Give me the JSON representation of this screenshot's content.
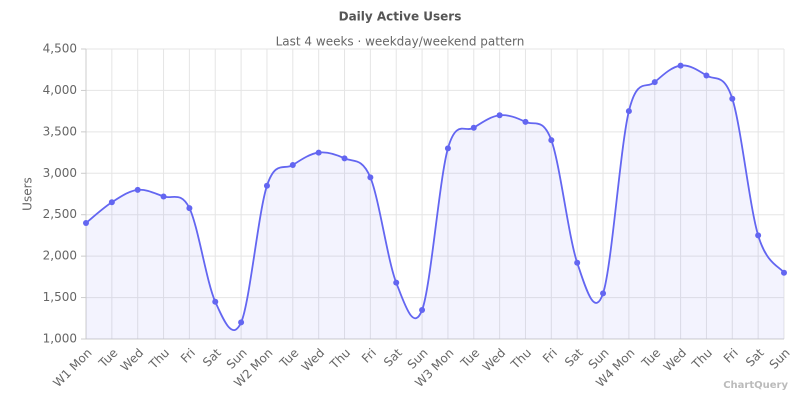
{
  "chart_data": {
    "type": "line",
    "title": "Daily Active Users",
    "subtitle": "Last 4 weeks · weekday/weekend pattern",
    "y_label": "Users",
    "watermark": "ChartQuery",
    "categories": [
      "W1 Mon",
      "Tue",
      "Wed",
      "Thu",
      "Fri",
      "Sat",
      "Sun",
      "W2 Mon",
      "Tue",
      "Wed",
      "Thu",
      "Fri",
      "Sat",
      "Sun",
      "W3 Mon",
      "Tue",
      "Wed",
      "Thu",
      "Fri",
      "Sat",
      "Sun",
      "W4 Mon",
      "Tue",
      "Wed",
      "Thu",
      "Fri",
      "Sat",
      "Sun"
    ],
    "values": [
      2400,
      2650,
      2800,
      2720,
      2580,
      1450,
      1200,
      2850,
      3100,
      3250,
      3180,
      2950,
      1680,
      1350,
      3300,
      3550,
      3700,
      3620,
      3400,
      1920,
      1550,
      3750,
      4100,
      4300,
      4180,
      3900,
      2250,
      1800
    ],
    "color": "#6366f1",
    "area_color": "rgba(99,102,241,0.08)",
    "ylim": [
      1000,
      4500
    ],
    "yticks": [
      {
        "value": 1000,
        "label": "1,000"
      },
      {
        "value": 1500,
        "label": "1,500"
      },
      {
        "value": 2000,
        "label": "2,000"
      },
      {
        "value": 2500,
        "label": "2,500"
      },
      {
        "value": 3000,
        "label": "3,000"
      },
      {
        "value": 3500,
        "label": "3,500"
      },
      {
        "value": 4000,
        "label": "4,000"
      },
      {
        "value": 4500,
        "label": "4,500"
      }
    ],
    "grid": true
  }
}
